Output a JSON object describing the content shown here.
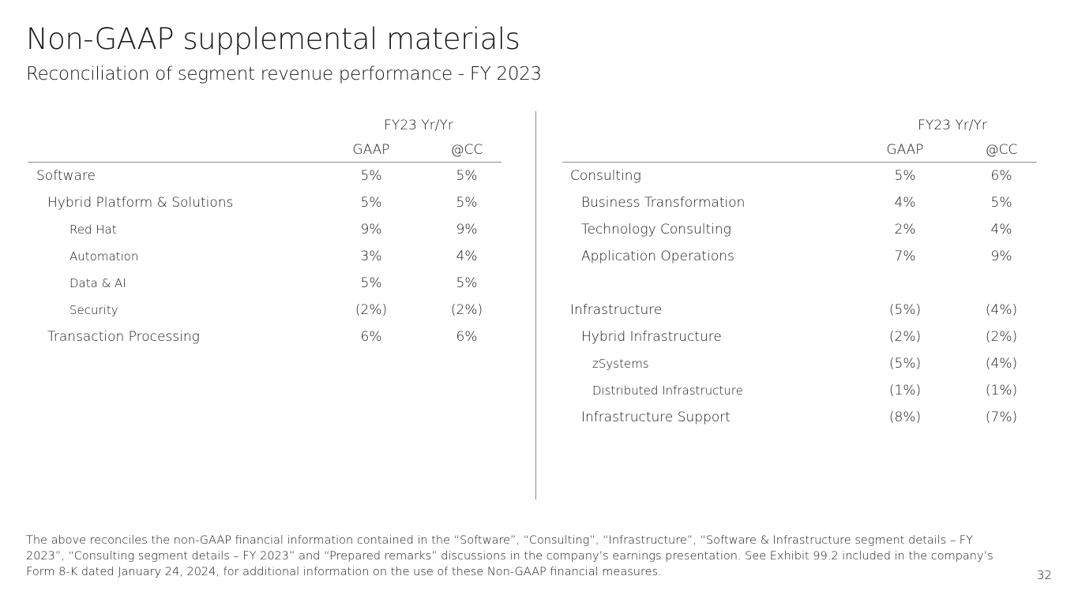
{
  "title": "Non-GAAP supplemental materials",
  "subtitle": "Reconciliation of segment revenue performance - FY 2023",
  "left_table": {
    "period_header": "FY23 Yr/Yr",
    "col_gaap": "GAAP",
    "col_cc": "@CC",
    "rows": [
      {
        "label": "Software",
        "level": 0,
        "gaap": "5%",
        "cc": "5%"
      },
      {
        "label": "Hybrid Platform & Solutions",
        "level": 1,
        "gaap": "5%",
        "cc": "5%"
      },
      {
        "label": "Red Hat",
        "level": 2,
        "gaap": "9%",
        "cc": "9%"
      },
      {
        "label": "Automation",
        "level": 2,
        "gaap": "3%",
        "cc": "4%"
      },
      {
        "label": "Data & AI",
        "level": 2,
        "gaap": "5%",
        "cc": "5%"
      },
      {
        "label": "Security",
        "level": 2,
        "gaap": "(2%)",
        "cc": "(2%)"
      },
      {
        "label": "Transaction Processing",
        "level": 1,
        "gaap": "6%",
        "cc": "6%"
      }
    ]
  },
  "right_table": {
    "period_header": "FY23 Yr/Yr",
    "col_gaap": "GAAP",
    "col_cc": "@CC",
    "rows": [
      {
        "label": "Consulting",
        "level": 0,
        "gaap": "5%",
        "cc": "6%"
      },
      {
        "label": "Business Transformation",
        "level": 1,
        "gaap": "4%",
        "cc": "5%"
      },
      {
        "label": "Technology Consulting",
        "level": 1,
        "gaap": "2%",
        "cc": "4%"
      },
      {
        "label": "Application Operations",
        "level": 1,
        "gaap": "7%",
        "cc": "9%"
      },
      {
        "label": "",
        "level": 0,
        "gaap": "",
        "cc": ""
      },
      {
        "label": "Infrastructure",
        "level": 0,
        "gaap": "(5%)",
        "cc": "(4%)"
      },
      {
        "label": "Hybrid Infrastructure",
        "level": 1,
        "gaap": "(2%)",
        "cc": "(2%)"
      },
      {
        "label": "zSystems",
        "level": 2,
        "gaap": "(5%)",
        "cc": "(4%)"
      },
      {
        "label": "Distributed Infrastructure",
        "level": 2,
        "gaap": "(1%)",
        "cc": "(1%)"
      },
      {
        "label": "Infrastructure Support",
        "level": 1,
        "gaap": "(8%)",
        "cc": "(7%)"
      }
    ]
  },
  "footnote": "The above reconciles the non-GAAP financial information contained in the “Software”, “Consulting”, “Infrastructure”, “Software & Infrastructure segment details – FY 2023”, “Consulting segment details – FY 2023” and “Prepared remarks” discussions in the company’s earnings presentation. See Exhibit 99.2 included in the company’s Form 8-K dated January 24, 2024, for additional information on the use of these Non-GAAP financial measures.",
  "page_number": "32"
}
